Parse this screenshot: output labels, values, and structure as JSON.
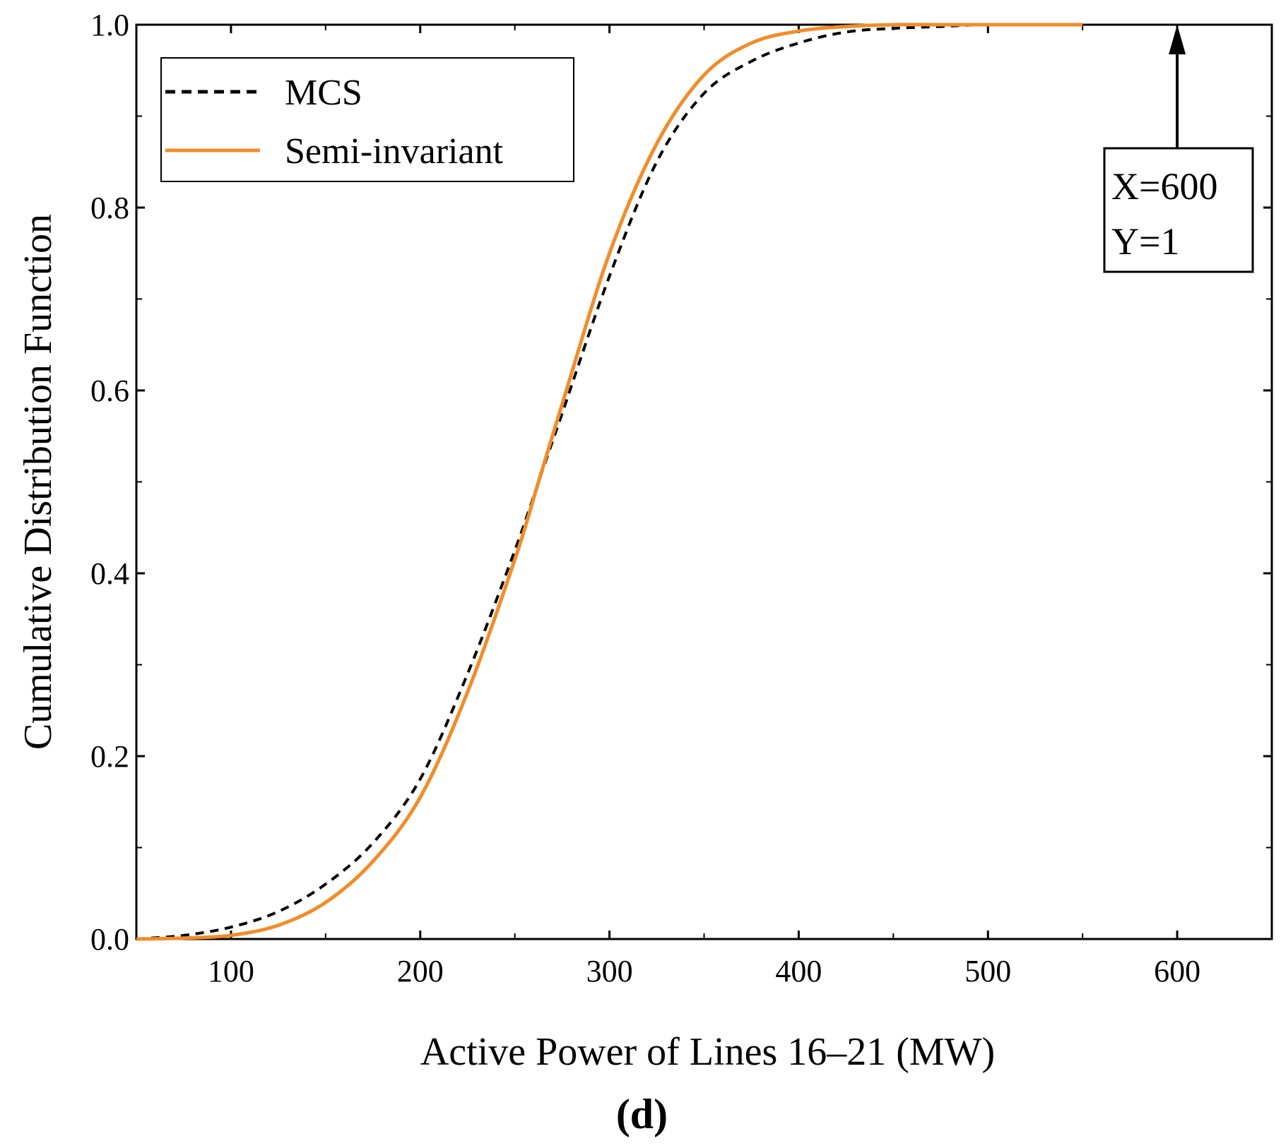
{
  "chart_data": {
    "type": "line",
    "title": "",
    "xlabel": "Active Power of Lines 16–21 (MW)",
    "ylabel": "Cumulative Distribution Function",
    "xlim": [
      50,
      650
    ],
    "ylim": [
      0,
      1.0
    ],
    "xticks": [
      100,
      200,
      300,
      400,
      500,
      600
    ],
    "xtick_labels": [
      "100",
      "200",
      "300",
      "400",
      "500",
      "600"
    ],
    "yticks": [
      0.0,
      0.2,
      0.4,
      0.6,
      0.8,
      1.0
    ],
    "ytick_labels": [
      "0.0",
      "0.2",
      "0.4",
      "0.6",
      "0.8",
      "1.0"
    ],
    "grid": false,
    "legend_position": "top-left",
    "panel_label": "(d)",
    "series": [
      {
        "name": "MCS",
        "style": "dashed",
        "color": "#000000",
        "x": [
          50,
          75,
          100,
          125,
          150,
          175,
          200,
          225,
          250,
          262.5,
          275,
          300,
          325,
          350,
          375,
          400,
          425,
          450,
          475,
          500,
          550
        ],
        "y": [
          0.0,
          0.004,
          0.013,
          0.03,
          0.06,
          0.105,
          0.175,
          0.29,
          0.425,
          0.5,
          0.575,
          0.725,
          0.85,
          0.925,
          0.96,
          0.98,
          0.992,
          0.996,
          0.998,
          1.0,
          1.0
        ]
      },
      {
        "name": "Semi-invariant",
        "style": "solid",
        "color": "#F28C28",
        "x": [
          50,
          75,
          100,
          125,
          150,
          175,
          200,
          225,
          250,
          262.5,
          275,
          300,
          325,
          350,
          375,
          400,
          425,
          450,
          475,
          500,
          550
        ],
        "y": [
          0.0,
          0.001,
          0.004,
          0.015,
          0.04,
          0.085,
          0.155,
          0.27,
          0.415,
          0.5,
          0.585,
          0.75,
          0.87,
          0.945,
          0.98,
          0.993,
          0.998,
          1.0,
          1.0,
          1.0,
          1.0
        ]
      }
    ],
    "annotations": [
      {
        "lines": [
          "X=600",
          "Y=1"
        ],
        "point_x": 600,
        "point_y": 1.0,
        "arrow": true
      }
    ]
  }
}
